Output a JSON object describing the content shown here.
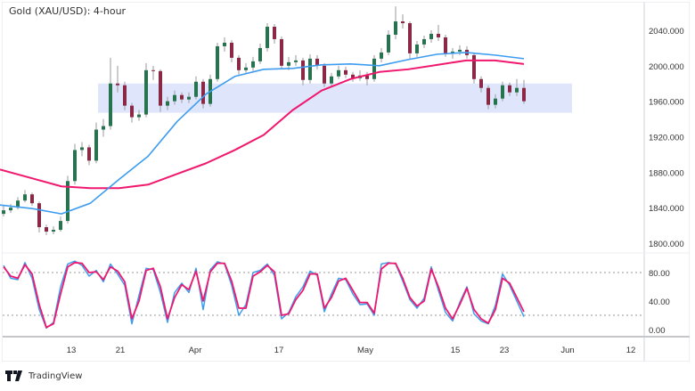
{
  "title": "Gold (XAU/USD): 4-hour",
  "brand": "TradingView",
  "colors": {
    "up": "#26734d",
    "down": "#8a2846",
    "wick": "#9a9a9a",
    "ma_fast": "#3d9cf0",
    "ma_slow": "#f0186e",
    "zone": "#dfe5fb",
    "stoch_k": "#3d9cf0",
    "stoch_d": "#f0186e"
  },
  "chart_data": [
    {
      "type": "candlestick",
      "title": "Gold (XAU/USD): 4-hour",
      "ylim": [
        1790,
        2070
      ],
      "y_ticks": [
        "2040.000",
        "2000.000",
        "1960.000",
        "1920.000",
        "1880.000",
        "1840.000",
        "1800.000"
      ],
      "y_tick_values": [
        2040,
        2000,
        1960,
        1920,
        1880,
        1840,
        1800
      ],
      "x_ticks": [
        "13",
        "21",
        "Apr",
        "17",
        "May",
        "15",
        "23",
        "Jun",
        "12"
      ],
      "zone": {
        "low": 1947,
        "high": 1980
      },
      "candles": [
        [
          1833,
          1842,
          1830,
          1837
        ],
        [
          1837,
          1844,
          1834,
          1840
        ],
        [
          1840,
          1852,
          1838,
          1848
        ],
        [
          1848,
          1860,
          1846,
          1855
        ],
        [
          1855,
          1857,
          1842,
          1845
        ],
        [
          1845,
          1847,
          1812,
          1818
        ],
        [
          1818,
          1821,
          1809,
          1813
        ],
        [
          1813,
          1819,
          1810,
          1815
        ],
        [
          1815,
          1830,
          1813,
          1825
        ],
        [
          1825,
          1876,
          1822,
          1870
        ],
        [
          1870,
          1912,
          1866,
          1905
        ],
        [
          1905,
          1914,
          1898,
          1908
        ],
        [
          1908,
          1911,
          1888,
          1893
        ],
        [
          1893,
          1936,
          1890,
          1928
        ],
        [
          1928,
          1940,
          1920,
          1932
        ],
        [
          1932,
          2009,
          1928,
          1980
        ],
        [
          1980,
          2000,
          1970,
          1978
        ],
        [
          1978,
          1982,
          1950,
          1955
        ],
        [
          1955,
          1958,
          1936,
          1942
        ],
        [
          1942,
          1950,
          1938,
          1945
        ],
        [
          1945,
          2003,
          1942,
          1995
        ],
        [
          1995,
          2000,
          1984,
          1994
        ],
        [
          1994,
          1996,
          1948,
          1955
        ],
        [
          1955,
          1965,
          1950,
          1960
        ],
        [
          1960,
          1972,
          1956,
          1967
        ],
        [
          1967,
          1970,
          1958,
          1962
        ],
        [
          1962,
          1970,
          1958,
          1965
        ],
        [
          1965,
          1988,
          1962,
          1982
        ],
        [
          1982,
          1985,
          1952,
          1957
        ],
        [
          1957,
          1990,
          1954,
          1985
        ],
        [
          1985,
          2026,
          1982,
          2022
        ],
        [
          2022,
          2032,
          2016,
          2026
        ],
        [
          2026,
          2029,
          2004,
          2009
        ],
        [
          2009,
          2012,
          1990,
          1995
        ],
        [
          1995,
          2003,
          1992,
          1998
        ],
        [
          1998,
          2010,
          1994,
          2005
        ],
        [
          2005,
          2025,
          2002,
          2020
        ],
        [
          2020,
          2048,
          2016,
          2044
        ],
        [
          2044,
          2047,
          2025,
          2030
        ],
        [
          2030,
          2033,
          1996,
          2000
        ],
        [
          2000,
          2010,
          1995,
          2004
        ],
        [
          2004,
          2012,
          2000,
          2006
        ],
        [
          2006,
          2009,
          1978,
          1984
        ],
        [
          1984,
          2013,
          1980,
          2008
        ],
        [
          2008,
          2012,
          1996,
          2000
        ],
        [
          2000,
          2003,
          1976,
          1980
        ],
        [
          1980,
          1992,
          1976,
          1988
        ],
        [
          1988,
          2000,
          1985,
          1995
        ],
        [
          1995,
          1999,
          1986,
          1990
        ],
        [
          1990,
          1993,
          1982,
          1986
        ],
        [
          1986,
          1995,
          1983,
          1989
        ],
        [
          1989,
          1993,
          1978,
          1985
        ],
        [
          1985,
          2012,
          1982,
          2008
        ],
        [
          2008,
          2020,
          2004,
          2015
        ],
        [
          2015,
          2040,
          2012,
          2035
        ],
        [
          2035,
          2067,
          2030,
          2050
        ],
        [
          2050,
          2058,
          2042,
          2048
        ],
        [
          2048,
          2050,
          2008,
          2014
        ],
        [
          2014,
          2028,
          2010,
          2024
        ],
        [
          2024,
          2034,
          2020,
          2030
        ],
        [
          2030,
          2040,
          2026,
          2036
        ],
        [
          2036,
          2046,
          2028,
          2032
        ],
        [
          2032,
          2035,
          2010,
          2014
        ],
        [
          2014,
          2020,
          2008,
          2016
        ],
        [
          2016,
          2023,
          2012,
          2018
        ],
        [
          2018,
          2022,
          2008,
          2012
        ],
        [
          2012,
          2014,
          1980,
          1985
        ],
        [
          1985,
          1988,
          1970,
          1975
        ],
        [
          1975,
          1978,
          1951,
          1956
        ],
        [
          1956,
          1968,
          1952,
          1963
        ],
        [
          1963,
          1982,
          1960,
          1978
        ],
        [
          1978,
          1981,
          1966,
          1970
        ],
        [
          1970,
          1985,
          1966,
          1975
        ],
        [
          1975,
          1984,
          1957,
          1960
        ]
      ],
      "ma_fast": [
        1843,
        1839,
        1833,
        1845,
        1872,
        1898,
        1937,
        1968,
        1988,
        1996,
        1997,
        2001,
        2002,
        2000,
        2007,
        2013,
        2015,
        2012,
        2008
      ],
      "ma_slow": [
        1883,
        1873,
        1864,
        1862,
        1862,
        1866,
        1878,
        1890,
        1905,
        1922,
        1950,
        1972,
        1985,
        1993,
        1996,
        2001,
        2006,
        2006,
        2002
      ]
    },
    {
      "type": "line",
      "ylim": [
        -5,
        105
      ],
      "y_ticks": [
        "80.00",
        "40.00",
        "0.00"
      ],
      "y_tick_values": [
        80,
        40,
        0
      ],
      "levels": [
        80,
        20
      ],
      "series": [
        {
          "values": [
            90,
            72,
            70,
            94,
            72,
            28,
            2,
            10,
            60,
            92,
            96,
            90,
            75,
            83,
            67,
            92,
            78,
            62,
            8,
            48,
            86,
            84,
            52,
            10,
            52,
            65,
            52,
            86,
            28,
            84,
            95,
            92,
            62,
            20,
            35,
            80,
            83,
            92,
            76,
            15,
            24,
            46,
            60,
            82,
            76,
            25,
            50,
            72,
            70,
            50,
            35,
            36,
            20,
            92,
            94,
            92,
            68,
            42,
            30,
            44,
            88,
            55,
            24,
            12,
            38,
            60,
            22,
            12,
            8,
            34,
            78,
            62,
            40,
            18
          ]
        },
        {
          "values": [
            88,
            75,
            72,
            91,
            78,
            35,
            3,
            8,
            50,
            88,
            94,
            93,
            80,
            81,
            70,
            88,
            82,
            67,
            15,
            40,
            83,
            86,
            60,
            15,
            45,
            63,
            56,
            82,
            40,
            81,
            93,
            93,
            68,
            30,
            30,
            75,
            81,
            90,
            81,
            20,
            22,
            42,
            55,
            78,
            78,
            30,
            45,
            68,
            72,
            55,
            38,
            38,
            23,
            85,
            93,
            93,
            72,
            45,
            33,
            40,
            85,
            60,
            30,
            15,
            35,
            58,
            28,
            15,
            9,
            28,
            72,
            65,
            45,
            25
          ]
        }
      ]
    }
  ]
}
